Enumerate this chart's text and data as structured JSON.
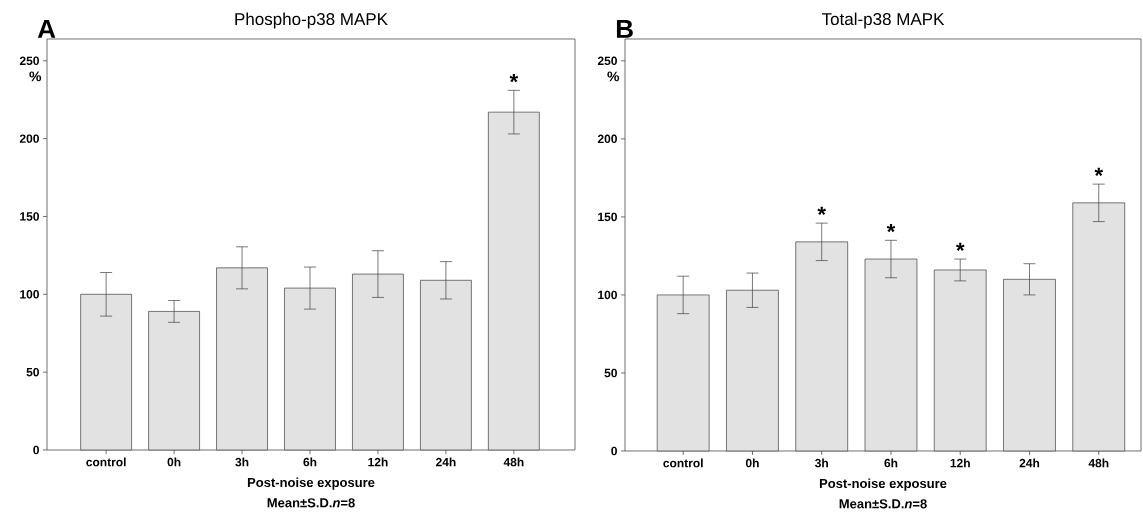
{
  "chart_data": [
    {
      "type": "bar",
      "title": "Phospho-p38 MAPK",
      "xlabel": "Post-noise exposure",
      "ylabel": "%",
      "categories": [
        "control",
        "0h",
        "3h",
        "6h",
        "12h",
        "24h",
        "48h"
      ],
      "values": [
        100,
        89,
        117,
        104,
        113,
        109,
        217
      ],
      "errors": [
        14,
        7,
        13.5,
        13.5,
        15,
        12,
        14
      ],
      "color": "#e2e2e2",
      "ylim": [
        0,
        264
      ],
      "yticks": [
        0,
        50,
        100,
        150,
        200,
        250
      ],
      "annotations": [
        "A",
        "Mean±S.D.*n*=8",
        {
          "text": "*",
          "x": "48h",
          "y": 231
        }
      ]
    },
    {
      "type": "bar",
      "title": "Total-p38 MAPK",
      "xlabel": "Post-noise exposure",
      "ylabel": "%",
      "categories": [
        "control",
        "0h",
        "3h",
        "6h",
        "12h",
        "24h",
        "48h"
      ],
      "values": [
        100,
        103,
        134,
        123,
        116,
        110,
        159
      ],
      "errors": [
        12,
        11,
        12,
        12,
        7,
        10,
        12
      ],
      "color": "#e2e2e2",
      "ylim": [
        0,
        264
      ],
      "yticks": [
        0,
        50,
        100,
        150,
        200,
        250
      ],
      "annotations": [
        "B",
        "Mean±S.D.*n*=8",
        {
          "text": "*",
          "x": "3h",
          "y": 146
        },
        {
          "text": "*",
          "x": "6h",
          "y": 135
        },
        {
          "text": "*",
          "x": "12h",
          "y": 123
        },
        {
          "text": "*",
          "x": "48h",
          "y": 171
        }
      ]
    }
  ]
}
